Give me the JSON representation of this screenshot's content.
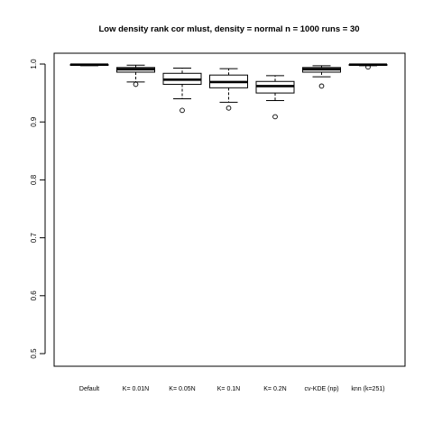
{
  "chart_data": {
    "type": "box",
    "title": "Low density rank cor mlust, density = normal n = 1000 runs = 30",
    "xlabel": "",
    "ylabel": "",
    "ylim": [
      0.5,
      1.0
    ],
    "yticks": [
      "0.5",
      "0.6",
      "0.7",
      "0.8",
      "0.9",
      "1.0"
    ],
    "grid": false,
    "legend": "none",
    "categories": [
      "Default",
      "K= 0.01N",
      "K= 0.05N",
      "K= 0.1N",
      "K= 0.2N",
      "cv-KDE (np)",
      "knn (k=251)"
    ],
    "boxes": [
      {
        "whisker_low": 0.997,
        "q1": 0.998,
        "median": 0.999,
        "q3": 0.999,
        "whisker_high": 1.0,
        "outliers": []
      },
      {
        "whisker_low": 0.969,
        "q1": 0.986,
        "median": 0.991,
        "q3": 0.994,
        "whisker_high": 0.998,
        "outliers": [
          0.965
        ]
      },
      {
        "whisker_low": 0.94,
        "q1": 0.965,
        "median": 0.973,
        "q3": 0.984,
        "whisker_high": 0.993,
        "outliers": [
          0.92
        ]
      },
      {
        "whisker_low": 0.934,
        "q1": 0.959,
        "median": 0.969,
        "q3": 0.981,
        "whisker_high": 0.992,
        "outliers": [
          0.924
        ]
      },
      {
        "whisker_low": 0.937,
        "q1": 0.95,
        "median": 0.962,
        "q3": 0.97,
        "whisker_high": 0.98,
        "outliers": [
          0.909
        ]
      },
      {
        "whisker_low": 0.978,
        "q1": 0.986,
        "median": 0.991,
        "q3": 0.994,
        "whisker_high": 0.997,
        "outliers": [
          0.962
        ]
      },
      {
        "whisker_low": 0.997,
        "q1": 0.998,
        "median": 0.999,
        "q3": 0.999,
        "whisker_high": 1.0,
        "outliers": [
          0.995
        ]
      }
    ]
  }
}
